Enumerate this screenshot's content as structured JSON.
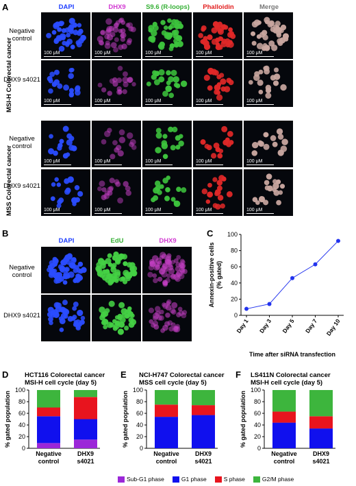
{
  "panel_a": {
    "letter": "A",
    "columns": [
      "DAPI",
      "DHX9",
      "S9.6 (R-loops)",
      "Phalloidin",
      "Merge"
    ],
    "column_colors": [
      "#1f3fff",
      "#d23ad2",
      "#35b035",
      "#e21e1e",
      "#777777"
    ],
    "group1_label": "MSI-H Colorectal cancer",
    "group2_label": "MSS Colorectal cancer",
    "rows": [
      {
        "label": "Negative control"
      },
      {
        "label": "DHX9 s4021"
      },
      {
        "label": "Negative control"
      },
      {
        "label": "DHX9 s4021"
      }
    ],
    "scale": "100 μM"
  },
  "panel_b": {
    "letter": "B",
    "columns": [
      "DAPI",
      "EdU",
      "DHX9"
    ],
    "column_colors": [
      "#1f3fff",
      "#35b035",
      "#d23ad2"
    ],
    "rows": [
      {
        "label": "Negative control"
      },
      {
        "label": "DHX9 s4021"
      }
    ]
  },
  "panel_c": {
    "letter": "C"
  },
  "panel_d": {
    "letter": "D",
    "title_line1": "HCT116 Colorectal cancer",
    "title_line2": "MSI-H cell cycle (day 5)"
  },
  "panel_e": {
    "letter": "E",
    "title_line1": "NCI-H747 Colorectal cancer",
    "title_line2": "MSS cell cycle (day 5)"
  },
  "panel_f": {
    "letter": "F",
    "title_line1": "LS411N Colorectal cancer",
    "title_line2": "MSI-H cell cycle (day 5)"
  },
  "legend": [
    {
      "label": "Sub-G1 phase",
      "color": "#9b27d8"
    },
    {
      "label": "G1 phase",
      "color": "#1010ee"
    },
    {
      "label": "S phase",
      "color": "#e8141e"
    },
    {
      "label": "G2/M phase",
      "color": "#3db53d"
    }
  ],
  "chart_data": [
    {
      "id": "C",
      "type": "line",
      "x": [
        "Day 1",
        "Day 3",
        "Day 5",
        "Day 7",
        "Day 10"
      ],
      "y": [
        8,
        14,
        46,
        63,
        92
      ],
      "ylabel": "Annexin-positive cells (% gated)",
      "xlabel": "Time after siRNA transfection",
      "ylim": [
        0,
        100
      ],
      "yticks": [
        0,
        20,
        40,
        60,
        80,
        100
      ],
      "color": "#2233ee"
    },
    {
      "id": "D",
      "type": "bar",
      "stacked": true,
      "categories": [
        "Negative control",
        "DHX9 s4021"
      ],
      "series": [
        {
          "name": "Sub-G1 phase",
          "values": [
            9,
            15
          ]
        },
        {
          "name": "G1 phase",
          "values": [
            46,
            35
          ]
        },
        {
          "name": "S phase",
          "values": [
            15,
            38
          ]
        },
        {
          "name": "G2/M phase",
          "values": [
            30,
            12
          ]
        }
      ],
      "ylabel": "% gated population",
      "ylim": [
        0,
        100
      ],
      "yticks": [
        0,
        20,
        40,
        60,
        80,
        100
      ]
    },
    {
      "id": "E",
      "type": "bar",
      "stacked": true,
      "categories": [
        "Negative control",
        "DHX9 s4021"
      ],
      "series": [
        {
          "name": "Sub-G1 phase",
          "values": [
            0,
            0
          ]
        },
        {
          "name": "G1 phase",
          "values": [
            54,
            57
          ]
        },
        {
          "name": "S phase",
          "values": [
            21,
            17
          ]
        },
        {
          "name": "G2/M phase",
          "values": [
            25,
            26
          ]
        }
      ],
      "ylabel": "% gated population",
      "ylim": [
        0,
        100
      ],
      "yticks": [
        0,
        20,
        40,
        60,
        80,
        100
      ]
    },
    {
      "id": "F",
      "type": "bar",
      "stacked": true,
      "categories": [
        "Negative control",
        "DHX9 s4021"
      ],
      "series": [
        {
          "name": "Sub-G1 phase",
          "values": [
            0,
            0
          ]
        },
        {
          "name": "G1 phase",
          "values": [
            44,
            34
          ]
        },
        {
          "name": "S phase",
          "values": [
            19,
            21
          ]
        },
        {
          "name": "G2/M phase",
          "values": [
            37,
            45
          ]
        }
      ],
      "ylabel": "% gated population",
      "ylim": [
        0,
        100
      ],
      "yticks": [
        0,
        20,
        40,
        60,
        80,
        100
      ]
    }
  ]
}
